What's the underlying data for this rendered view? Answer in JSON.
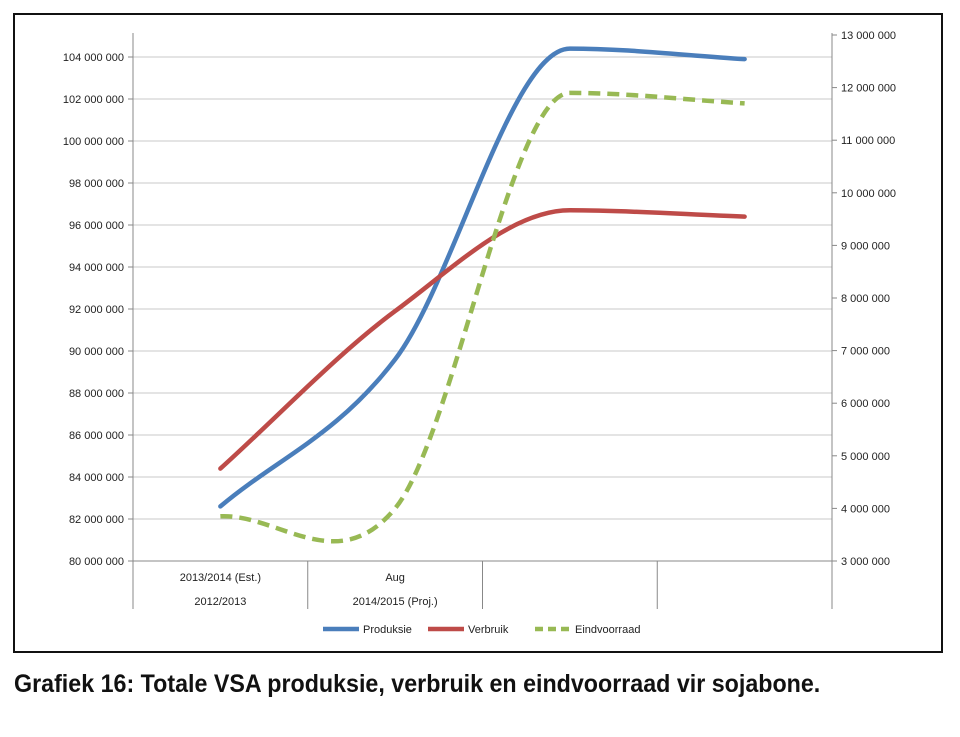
{
  "caption": "Grafiek 16: Totale VSA produksie, verbruik en eindvoorraad vir sojabone.",
  "chart_data": {
    "type": "line",
    "title": "",
    "xlabel": "",
    "ylabel": "",
    "y_left": {
      "min": 80000000,
      "max": 104000000,
      "step": 2000000,
      "ticks": [
        "80 000 000",
        "82 000 000",
        "84 000 000",
        "86 000 000",
        "88 000 000",
        "90 000 000",
        "92 000 000",
        "94 000 000",
        "96 000 000",
        "98 000 000",
        "100 000 000",
        "102 000 000",
        "104 000 000"
      ]
    },
    "y_right": {
      "min": 3000000,
      "max": 13000000,
      "step": 1000000,
      "ticks": [
        "3 000 000",
        "4 000 000",
        "5 000 000",
        "6 000 000",
        "7 000 000",
        "8 000 000",
        "9 000 000",
        "10 000 000",
        "11 000 000",
        "12 000 000",
        "13 000 000"
      ]
    },
    "categories_top": [
      "2013/2014 (Est.)",
      "Aug",
      "",
      ""
    ],
    "categories_bottom": [
      "2012/2013",
      "2014/2015 (Proj.)",
      "",
      ""
    ],
    "grid": true,
    "legend_position": "bottom",
    "series": [
      {
        "name": "Produksie",
        "axis": "left",
        "color": "#4a7ebb",
        "dash": false,
        "values": [
          82600000,
          89600000,
          104400000,
          103900000
        ]
      },
      {
        "name": "Verbruik",
        "axis": "left",
        "color": "#be4b48",
        "dash": false,
        "values": [
          84400000,
          91900000,
          96700000,
          96400000
        ]
      },
      {
        "name": "Eindvoorraad",
        "axis": "right",
        "color": "#98b954",
        "dash": true,
        "values": [
          3850000,
          4000000,
          11900000,
          11700000
        ]
      }
    ]
  }
}
